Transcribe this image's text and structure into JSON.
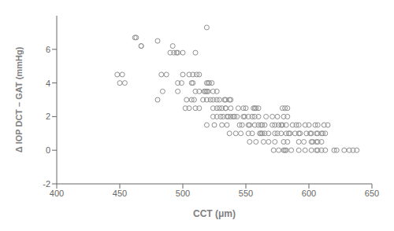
{
  "chart_data": {
    "type": "scatter",
    "x": [
      519,
      462,
      463,
      480,
      467,
      467,
      492,
      490,
      493,
      495,
      496,
      500,
      510,
      448,
      452,
      483,
      487,
      500,
      505,
      508,
      511,
      513,
      450,
      454,
      496,
      499,
      507,
      508,
      519,
      520,
      521,
      523,
      484,
      496,
      510,
      513,
      517,
      518,
      519,
      520,
      524,
      527,
      480,
      503,
      507,
      509,
      516,
      519,
      522,
      524,
      527,
      529,
      533,
      534,
      537,
      538,
      502,
      505,
      510,
      513,
      524,
      527,
      529,
      531,
      534,
      534,
      538,
      544,
      548,
      550,
      556,
      557,
      558,
      560,
      579,
      581,
      583,
      524,
      527,
      530,
      532,
      535,
      536,
      538,
      540,
      541,
      543,
      548,
      549,
      552,
      555,
      557,
      560,
      566,
      571,
      575,
      580,
      583,
      519,
      525,
      531,
      535,
      545,
      547,
      552,
      553,
      557,
      560,
      562,
      563,
      565,
      571,
      573,
      576,
      578,
      579,
      582,
      587,
      590,
      592,
      597,
      600,
      605,
      607,
      612,
      615,
      537,
      542,
      546,
      552,
      555,
      561,
      562,
      563,
      565,
      568,
      573,
      575,
      578,
      582,
      584,
      585,
      589,
      592,
      593,
      598,
      601,
      602,
      606,
      607,
      610,
      611,
      613,
      553,
      558,
      564,
      568,
      573,
      580,
      583,
      592,
      596,
      602,
      603,
      606,
      607,
      610,
      572,
      576,
      580,
      581,
      582,
      586,
      592,
      597,
      602,
      606,
      607,
      610,
      613,
      620,
      622,
      628,
      632,
      635,
      638
    ],
    "values": [
      7.3,
      6.7,
      6.7,
      6.5,
      6.2,
      6.2,
      6.2,
      5.8,
      5.8,
      5.8,
      5.8,
      5.8,
      5.8,
      4.5,
      4.5,
      4.5,
      4.5,
      4.5,
      4.5,
      4.5,
      4.5,
      4.5,
      4.0,
      4.0,
      4.0,
      4.0,
      4.0,
      4.0,
      4.0,
      4.0,
      4.0,
      4.0,
      3.5,
      3.5,
      3.5,
      3.5,
      3.5,
      3.5,
      3.5,
      3.5,
      3.5,
      3.5,
      3.0,
      3.0,
      3.0,
      3.0,
      3.0,
      3.0,
      3.0,
      3.0,
      3.0,
      3.0,
      3.0,
      3.0,
      3.0,
      3.0,
      2.5,
      2.5,
      2.5,
      2.5,
      2.5,
      2.5,
      2.5,
      2.5,
      2.5,
      2.5,
      2.5,
      2.5,
      2.5,
      2.5,
      2.5,
      2.5,
      2.5,
      2.5,
      2.5,
      2.5,
      2.5,
      2.0,
      2.0,
      2.0,
      2.0,
      2.0,
      2.0,
      2.0,
      2.0,
      2.0,
      2.0,
      2.0,
      2.0,
      2.0,
      2.0,
      2.0,
      2.0,
      2.0,
      2.0,
      2.0,
      2.0,
      2.0,
      1.5,
      1.5,
      1.5,
      1.5,
      1.5,
      1.5,
      1.5,
      1.5,
      1.5,
      1.5,
      1.5,
      1.5,
      1.5,
      1.5,
      1.5,
      1.5,
      1.5,
      1.5,
      1.5,
      1.5,
      1.5,
      1.5,
      1.5,
      1.5,
      1.5,
      1.5,
      1.5,
      1.5,
      1.0,
      1.0,
      1.0,
      1.0,
      1.0,
      1.0,
      1.0,
      1.0,
      1.0,
      1.0,
      1.0,
      1.0,
      1.0,
      1.0,
      1.0,
      1.0,
      1.0,
      1.0,
      1.0,
      1.0,
      1.0,
      1.0,
      1.0,
      1.0,
      1.0,
      1.0,
      1.0,
      0.5,
      0.5,
      0.5,
      0.5,
      0.5,
      0.5,
      0.5,
      0.5,
      0.5,
      0.5,
      0.5,
      0.5,
      0.5,
      0.5,
      0.0,
      0.0,
      0.0,
      0.0,
      0.0,
      0.0,
      0.0,
      0.0,
      0.0,
      0.0,
      0.0,
      0.0,
      0.0,
      0.0,
      0.0,
      0.0,
      0.0,
      0.0,
      0.0
    ],
    "xlabel": "CCT (μm)",
    "ylabel": "Δ IOP DCT – GAT (mmHg)",
    "xlim": [
      400,
      650
    ],
    "ylim": [
      -2,
      8
    ],
    "xticks": [
      400,
      450,
      500,
      550,
      600,
      650
    ],
    "yticks": [
      -2,
      0,
      2,
      4,
      6
    ],
    "color": "#909090",
    "marker": "circle",
    "grid": false
  }
}
